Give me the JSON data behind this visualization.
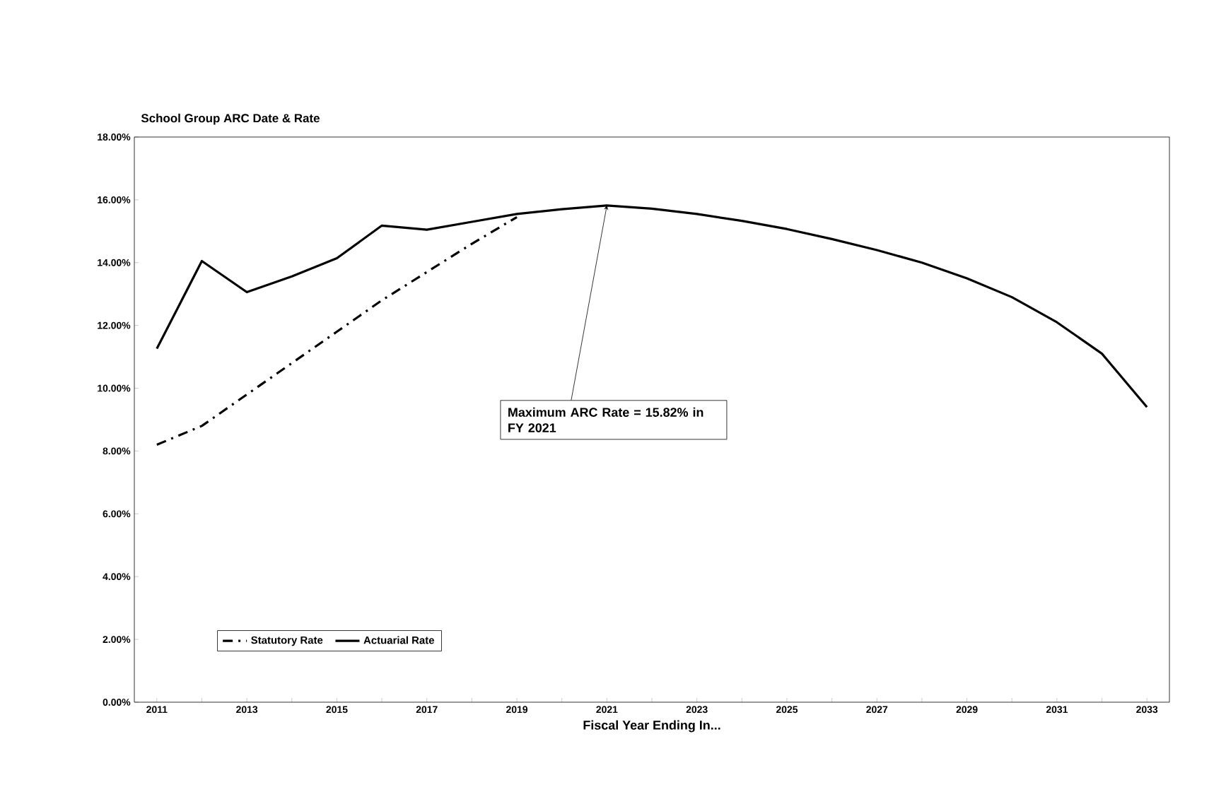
{
  "chart_data": {
    "type": "line",
    "title": "School Group ARC Date & Rate",
    "xlabel": "Fiscal Year Ending In...",
    "categories": [
      "2011",
      null,
      "2013",
      null,
      "2015",
      null,
      "2017",
      null,
      "2019",
      null,
      "2021",
      null,
      "2023",
      null,
      "2025",
      null,
      "2027",
      null,
      "2029",
      null,
      "2031",
      null,
      "2033"
    ],
    "series": [
      {
        "name": "Statutory Rate",
        "color": "#000000",
        "line_style": "dashdot",
        "values": [
          8.2,
          8.8,
          9.8,
          10.8,
          11.8,
          12.8,
          13.7,
          14.6,
          15.45,
          null,
          null,
          null,
          null,
          null,
          null,
          null,
          null,
          null,
          null,
          null,
          null,
          null,
          null
        ]
      },
      {
        "name": "Actuarial Rate",
        "color": "#000000",
        "line_style": "solid",
        "values": [
          11.26,
          14.05,
          13.06,
          13.56,
          14.14,
          15.18,
          15.05,
          15.3,
          15.55,
          15.7,
          15.82,
          15.72,
          15.55,
          15.33,
          15.07,
          14.75,
          14.4,
          14.0,
          13.5,
          12.9,
          12.1,
          11.1,
          9.4
        ]
      }
    ],
    "ylim": [
      0,
      18
    ],
    "yticks": [
      {
        "value": 0,
        "label": "0.00%"
      },
      {
        "value": 2,
        "label": "2.00%"
      },
      {
        "value": 4,
        "label": "4.00%"
      },
      {
        "value": 6,
        "label": "6.00%"
      },
      {
        "value": 8,
        "label": "8.00%"
      },
      {
        "value": 10,
        "label": "10.00%"
      },
      {
        "value": 12,
        "label": "12.00%"
      },
      {
        "value": 14,
        "label": "14.00%"
      },
      {
        "value": 16,
        "label": "16.00%"
      },
      {
        "value": 18,
        "label": "18.00%"
      }
    ],
    "annotations": [
      {
        "text": "Maximum ARC Rate = 15.82% in FY 2021",
        "x": "2021",
        "y": 15.82
      }
    ],
    "grid": false,
    "legend": "bottom left",
    "marker": "none"
  }
}
